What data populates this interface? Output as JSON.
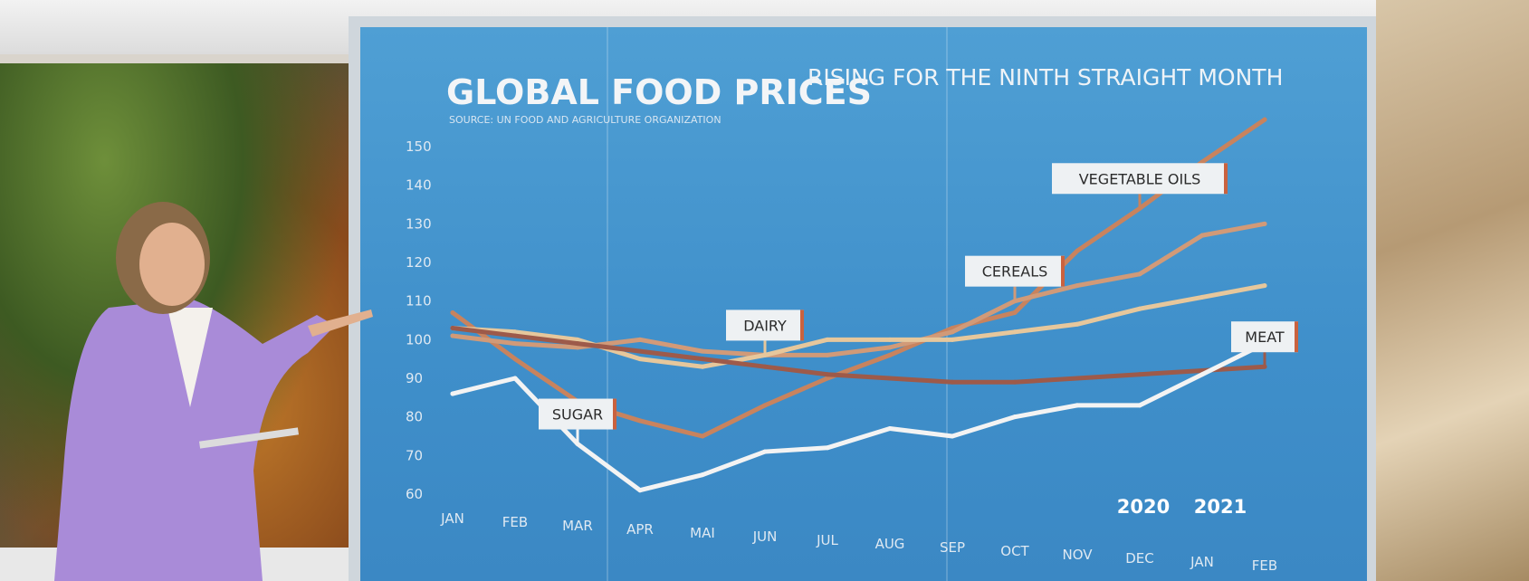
{
  "chart_data": {
    "type": "line",
    "title": "GLOBAL FOOD PRICES",
    "subtitle": "RISING FOR THE NINTH STRAIGHT MONTH",
    "source": "SOURCE: UN FOOD AND AGRICULTURE ORGANIZATION",
    "categories": [
      "JAN",
      "FEB",
      "MAR",
      "APR",
      "MAI",
      "JUN",
      "JUL",
      "AUG",
      "SEP",
      "OCT",
      "NOV",
      "DEC",
      "JAN",
      "FEB"
    ],
    "year_labels": [
      "2020",
      "2021"
    ],
    "y_ticks": [
      60,
      70,
      80,
      90,
      100,
      110,
      120,
      130,
      140,
      150
    ],
    "ylim": [
      60,
      150
    ],
    "series": [
      {
        "name": "VEGETABLE OILS",
        "color": "#c8835e",
        "label_index": 11,
        "values": [
          107,
          95,
          84,
          79,
          75,
          83,
          90,
          96,
          103,
          107,
          123,
          134,
          146,
          157
        ]
      },
      {
        "name": "CEREALS",
        "color": "#d19a78",
        "label_index": 9,
        "values": [
          101,
          99,
          98,
          100,
          97,
          96,
          96,
          98,
          102,
          110,
          114,
          117,
          127,
          130
        ]
      },
      {
        "name": "DAIRY",
        "color": "#e6c79c",
        "label_index": 5,
        "values": [
          103,
          102,
          100,
          95,
          93,
          96,
          100,
          100,
          100,
          102,
          104,
          108,
          111,
          114
        ]
      },
      {
        "name": "MEAT",
        "color": "#9d5a4a",
        "label_index": 13,
        "values": [
          103,
          101,
          99,
          97,
          95,
          93,
          91,
          90,
          89,
          89,
          90,
          91,
          92,
          93
        ]
      },
      {
        "name": "SUGAR",
        "color": "#f3f3f3",
        "label_index": 2,
        "values": [
          86,
          90,
          73,
          61,
          65,
          71,
          72,
          77,
          75,
          80,
          83,
          83,
          91,
          99
        ]
      }
    ]
  }
}
